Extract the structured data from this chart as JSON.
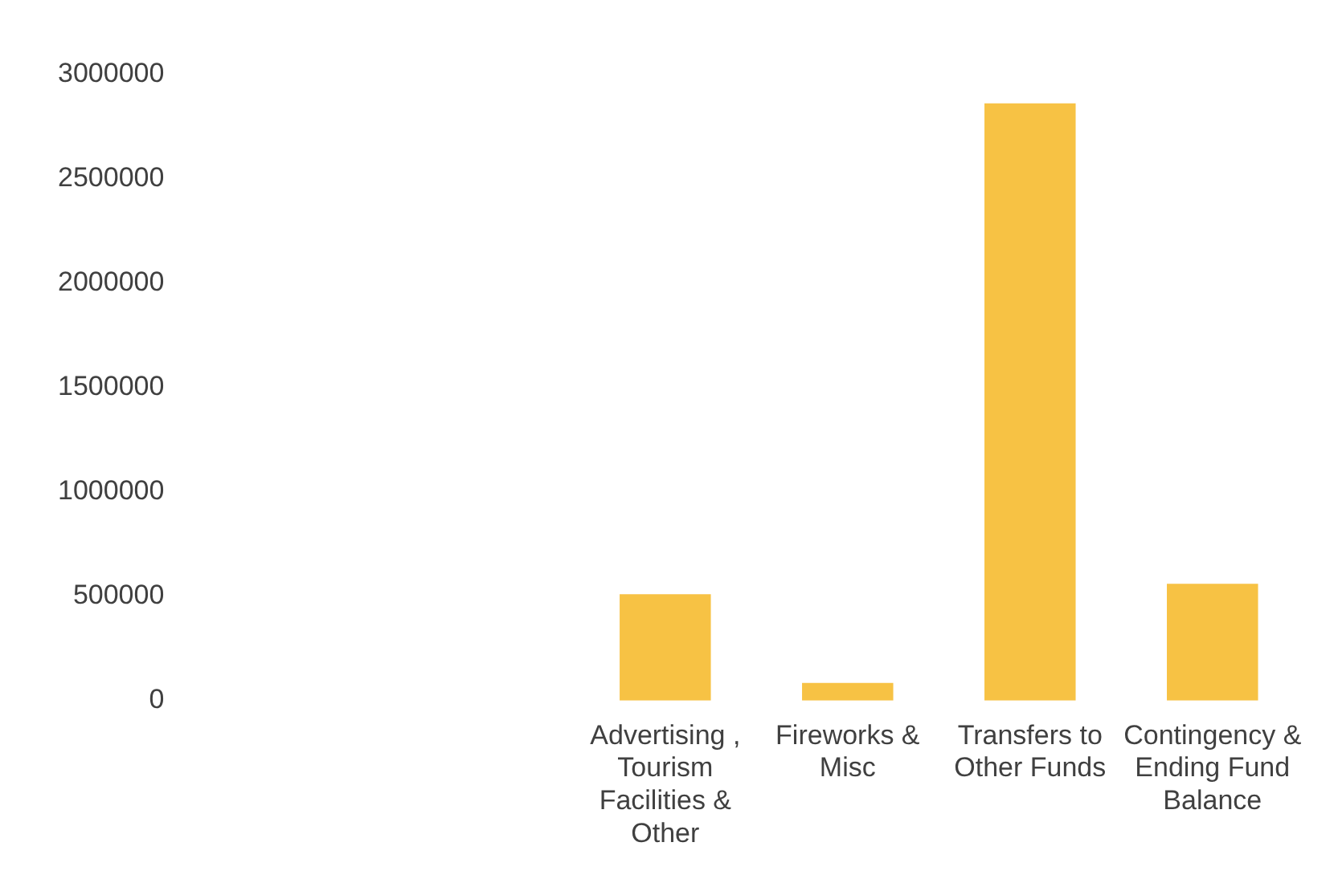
{
  "chart_data": {
    "type": "bar",
    "categories": [
      null,
      null,
      "Advertising , Tourism Facilities & Other",
      "Fireworks & Misc",
      "Transfers to Other Funds",
      "Contingency & Ending Fund Balance"
    ],
    "values": [
      null,
      null,
      510000,
      85000,
      2860000,
      560000
    ],
    "color": "#f7c244",
    "ylim": [
      0,
      3000000
    ],
    "yticks": [
      0,
      500000,
      1000000,
      1500000,
      2000000,
      2500000,
      3000000
    ],
    "grid": false,
    "legend": false
  }
}
